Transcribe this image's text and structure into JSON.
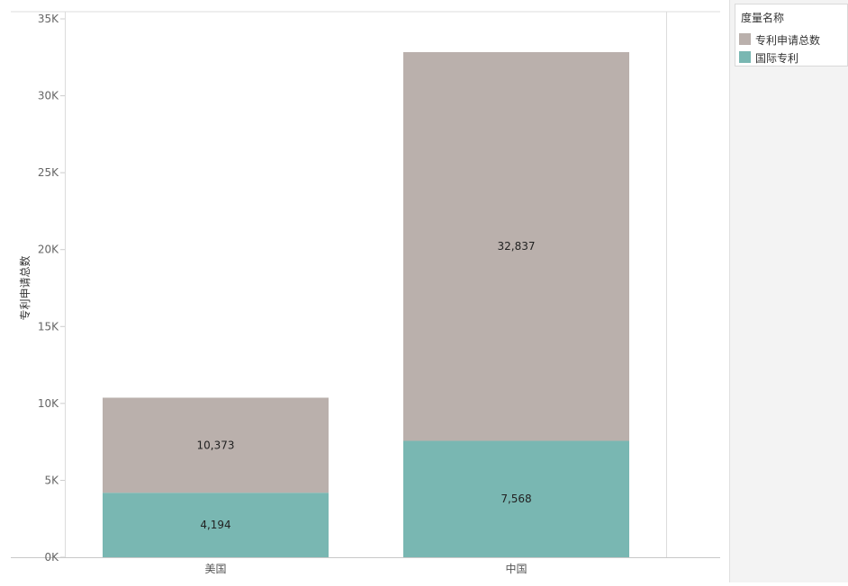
{
  "legend": {
    "title": "度量名称",
    "items": [
      {
        "label": "专利申请总数",
        "color": "#bab0ac"
      },
      {
        "label": "国际专利",
        "color": "#79b7b2"
      }
    ]
  },
  "chart_data": {
    "type": "bar",
    "stacked": true,
    "categories": [
      "美国",
      "中国"
    ],
    "series": [
      {
        "name": "国际专利",
        "color": "#79b7b2",
        "values": [
          4194,
          7568
        ],
        "labels": [
          "4,194",
          "7,568"
        ]
      },
      {
        "name": "专利申请总数",
        "color": "#bab0ac",
        "values": [
          6179,
          25269
        ],
        "labels": [
          "10,373",
          "32,837"
        ]
      }
    ],
    "ylabel": "专利申请总数",
    "xlabel": "",
    "ylim": [
      0,
      35000
    ],
    "yticks": [
      0,
      5000,
      10000,
      15000,
      20000,
      25000,
      30000,
      35000
    ],
    "ytick_labels": [
      "0K",
      "5K",
      "10K",
      "15K",
      "20K",
      "25K",
      "30K",
      "35K"
    ],
    "grid": false,
    "legend_position": "right"
  }
}
